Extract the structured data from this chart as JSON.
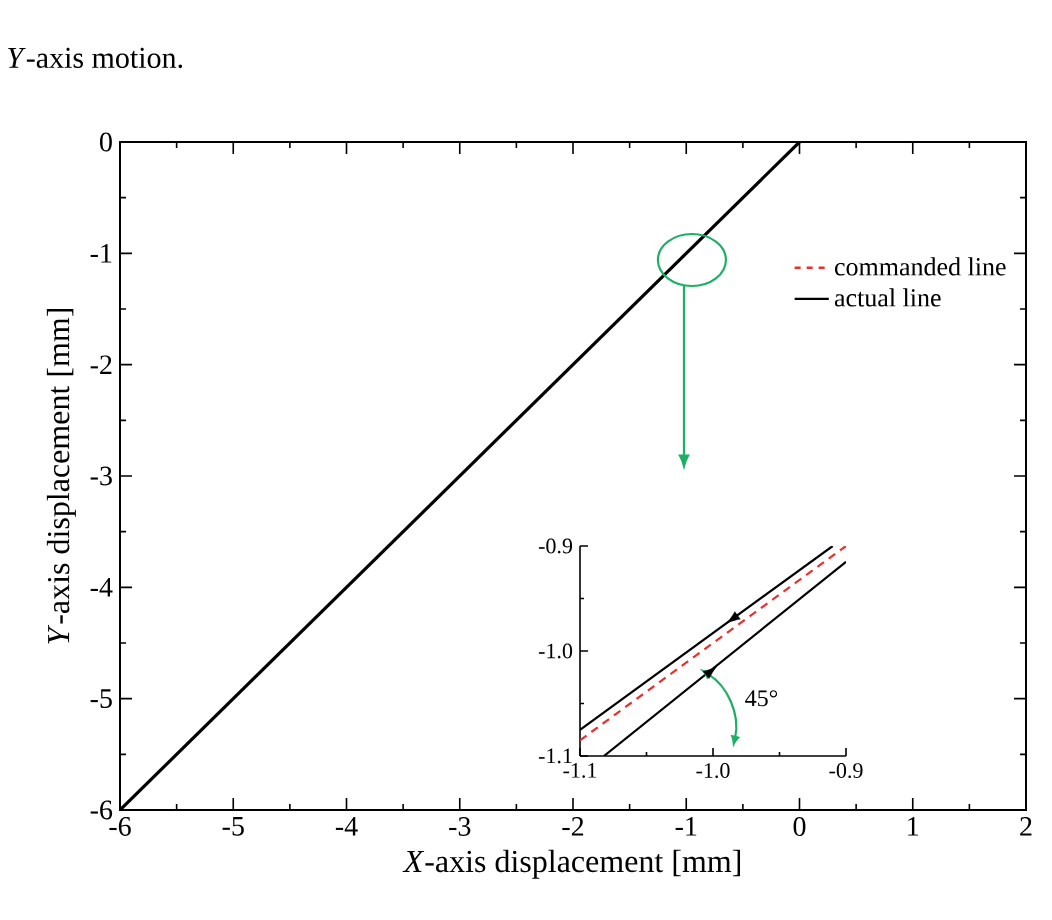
{
  "chart_data": [
    {
      "type": "line",
      "annotations": [
        "*Y*-axis motion."
      ],
      "xlabel": "*X*-axis displacement [mm]",
      "ylabel": "*Y*-axis displacement [mm]",
      "xlim": [
        -6,
        2
      ],
      "xticks": [
        -6,
        -5,
        -4,
        -3,
        -2,
        -1,
        0,
        1,
        2
      ],
      "ylim": [
        -6,
        0
      ],
      "yticks": [
        -6,
        -5,
        -4,
        -3,
        -2,
        -1,
        0
      ],
      "legend": "top right",
      "series": [
        {
          "name": "commanded line",
          "color": "#e8312f",
          "line_style": "dashed",
          "values": [
            null,
            null
          ]
        },
        {
          "name": "actual line",
          "color": "#000000",
          "line_style": "solid",
          "x": [
            -6,
            0
          ],
          "values": [
            -6,
            0
          ]
        }
      ]
    },
    {
      "type": "line",
      "annotations": [
        "45°"
      ],
      "xlim": [
        -1.1,
        -0.9
      ],
      "xticks": [
        -1.1,
        {
          "value": -1.0,
          "label": "-1.0"
        },
        -0.9
      ],
      "ylim": [
        -1.1,
        -0.9
      ],
      "yticks": [
        -1.1,
        {
          "value": -1.0,
          "label": "-1.0"
        },
        -0.9
      ],
      "series": [
        {
          "color": "#e8312f",
          "line_style": "dashed",
          "x": [
            -1.1,
            -0.9
          ],
          "values": [
            -1.085,
            -0.9
          ]
        },
        {
          "color": "#000000",
          "line_style": "solid",
          "x": [
            -0.91,
            -1.1,
            null,
            -1.082,
            -0.9
          ],
          "values": [
            -0.9,
            -1.075,
            null,
            -1.1,
            -0.915
          ]
        }
      ]
    }
  ]
}
